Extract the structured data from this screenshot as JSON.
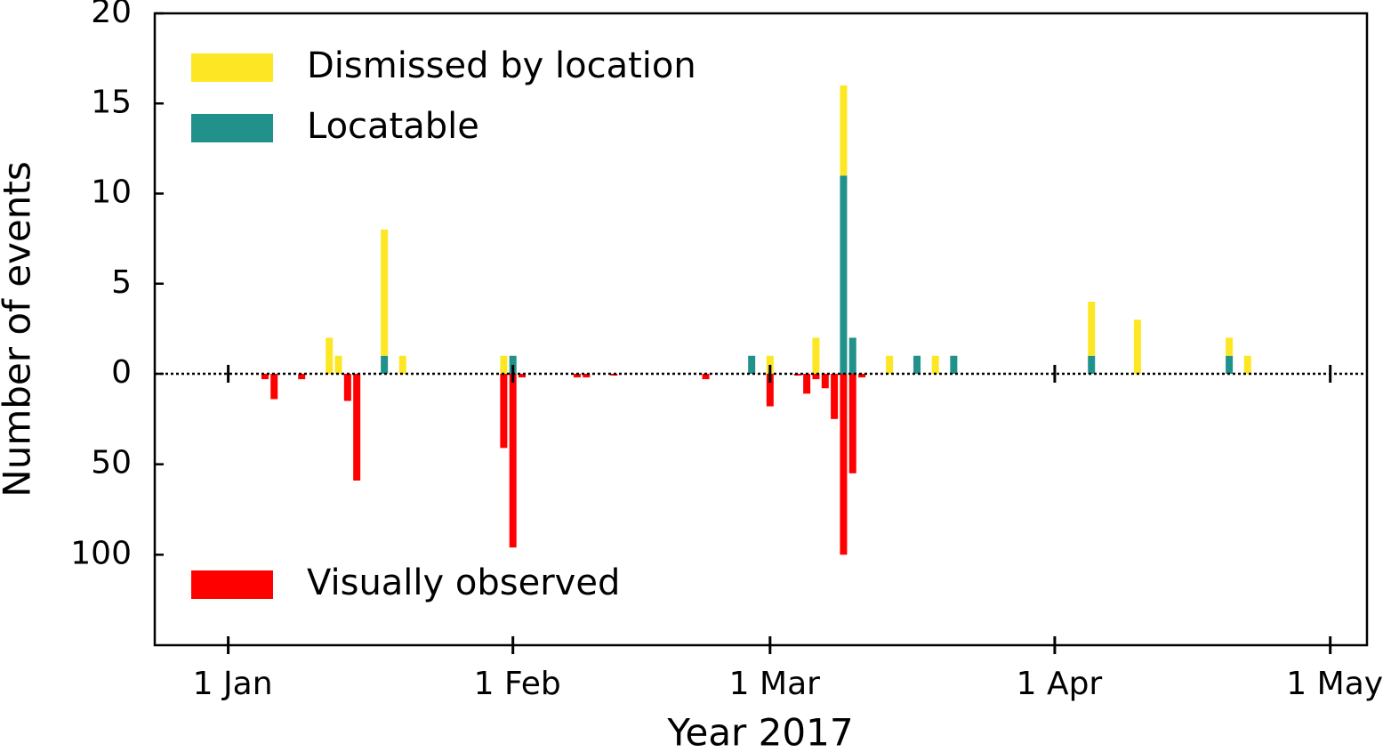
{
  "chart_data": [
    {
      "type": "bar",
      "stacked": true,
      "y_label": "Number of events",
      "legend": "upper left",
      "xlim": [
        "2016-12-24",
        "2017-05-05"
      ],
      "ylim": [
        0,
        20
      ],
      "yticks": [
        0,
        5,
        10,
        15,
        20
      ],
      "x": [
        "2017-01-12",
        "2017-01-13",
        "2017-01-18",
        "2017-01-20",
        "2017-01-31",
        "2017-02-01",
        "2017-02-27",
        "2017-03-01",
        "2017-03-06",
        "2017-03-09",
        "2017-03-10",
        "2017-03-14",
        "2017-03-17",
        "2017-03-19",
        "2017-03-21",
        "2017-04-05",
        "2017-04-10",
        "2017-04-20",
        "2017-04-22"
      ],
      "series": [
        {
          "name": "Locatable",
          "color": "#21918c",
          "values": [
            0,
            0,
            1,
            0,
            0,
            1,
            1,
            0,
            0,
            11,
            2,
            0,
            1,
            0,
            1,
            1,
            0,
            1,
            0
          ]
        },
        {
          "name": "Dismissed by location",
          "color": "#fde725",
          "values": [
            2,
            1,
            7,
            1,
            1,
            0,
            0,
            1,
            2,
            5,
            0,
            1,
            0,
            1,
            0,
            3,
            3,
            1,
            1
          ]
        }
      ],
      "legend_order": [
        1,
        0
      ]
    },
    {
      "type": "bar",
      "inverted": true,
      "x_label": "Year 2017",
      "legend": "lower left",
      "xlim": [
        "2016-12-24",
        "2017-05-05"
      ],
      "ylim": [
        0,
        150
      ],
      "yticks": [
        50,
        100
      ],
      "xticks": [
        {
          "value": "2017-01-01",
          "label": "1 Jan"
        },
        {
          "value": "2017-02-01",
          "label": "1 Feb"
        },
        {
          "value": "2017-03-01",
          "label": "1 Mar"
        },
        {
          "value": "2017-04-01",
          "label": "1 Apr"
        },
        {
          "value": "2017-05-01",
          "label": "1 May"
        }
      ],
      "x": [
        "2017-01-05",
        "2017-01-06",
        "2017-01-09",
        "2017-01-14",
        "2017-01-15",
        "2017-01-31",
        "2017-02-01",
        "2017-02-02",
        "2017-02-08",
        "2017-02-09",
        "2017-02-12",
        "2017-02-22",
        "2017-03-01",
        "2017-03-04",
        "2017-03-05",
        "2017-03-06",
        "2017-03-07",
        "2017-03-08",
        "2017-03-09",
        "2017-03-10",
        "2017-03-11"
      ],
      "series": [
        {
          "name": "Visually observed",
          "color": "#ff0000",
          "values": [
            3,
            14,
            3,
            15,
            59,
            41,
            96,
            2,
            2,
            2,
            1,
            3,
            18,
            1,
            11,
            3,
            8,
            25,
            100,
            55,
            2
          ]
        }
      ]
    }
  ]
}
